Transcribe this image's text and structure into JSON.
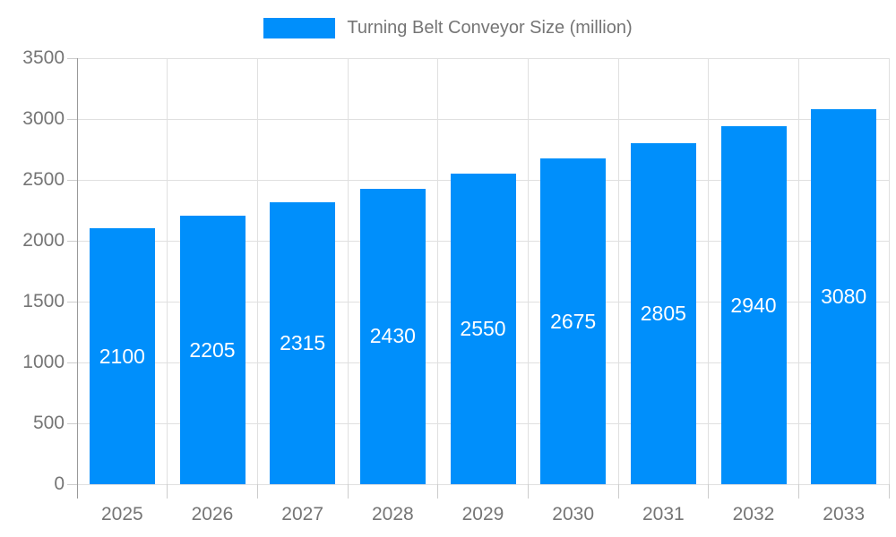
{
  "legend": {
    "label": "Turning Belt Conveyor Size (million)",
    "swatch_color": "#008ffb"
  },
  "chart_data": {
    "type": "bar",
    "title": "Turning Belt Conveyor Size (million)",
    "series": [
      {
        "name": "Turning Belt Conveyor Size (million)",
        "values": [
          2100,
          2205,
          2315,
          2430,
          2550,
          2675,
          2805,
          2940,
          3080
        ]
      }
    ],
    "categories": [
      "2025",
      "2026",
      "2027",
      "2028",
      "2029",
      "2030",
      "2031",
      "2032",
      "2033"
    ],
    "data_labels": [
      "2100",
      "2205",
      "2315",
      "2430",
      "2550",
      "2675",
      "2805",
      "2940",
      "3080"
    ],
    "xlabel": "",
    "ylabel": "",
    "ylim": [
      0,
      3500
    ],
    "yticks": [
      0,
      500,
      1000,
      1500,
      2000,
      2500,
      3000,
      3500
    ],
    "grid": true,
    "legend_position": "top",
    "colors": {
      "bar": "#008ffb",
      "bar_label": "#ffffff",
      "axis_text": "#757575",
      "grid_line": "#e0e0e0",
      "axis_line": "#999999",
      "tick_mark": "#cccccc"
    }
  }
}
